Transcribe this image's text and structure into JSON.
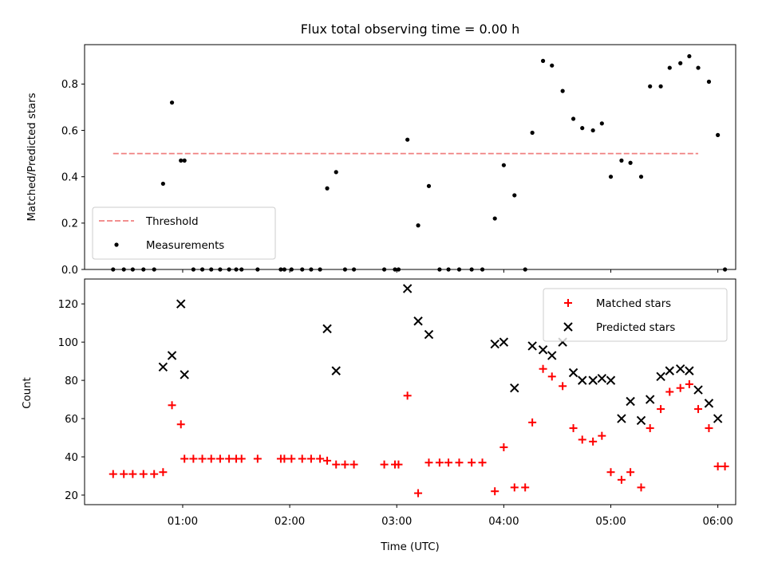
{
  "chart_data": [
    {
      "type": "scatter",
      "title": "Flux total observing time = 0.00 h",
      "xlabel": "",
      "ylabel": "Matched/Predicted stars",
      "xlim": [
        "00:05",
        "06:10"
      ],
      "ylim": [
        0,
        0.97
      ],
      "yticks": [
        0.0,
        0.2,
        0.4,
        0.6,
        0.8
      ],
      "yticklabels": [
        "0.0",
        "0.2",
        "0.4",
        "0.6",
        "0.8"
      ],
      "xticks": [
        "01:00",
        "02:00",
        "03:00",
        "04:00",
        "05:00",
        "06:00"
      ],
      "grid": false,
      "legend": {
        "placement": "lower-left",
        "entries": [
          "Threshold",
          "Measurements"
        ]
      },
      "series": [
        {
          "name": "Threshold",
          "kind": "dashed-line",
          "color": "#f08080",
          "x": [
            "00:21",
            "05:49"
          ],
          "y": [
            0.5,
            0.5
          ]
        },
        {
          "name": "Measurements",
          "kind": "points",
          "color": "#000000",
          "points": [
            [
              "00:21",
              0.0
            ],
            [
              "00:27",
              0.0
            ],
            [
              "00:32",
              0.0
            ],
            [
              "00:38",
              0.0
            ],
            [
              "00:44",
              0.0
            ],
            [
              "00:49",
              0.37
            ],
            [
              "00:54",
              0.72
            ],
            [
              "00:59",
              0.47
            ],
            [
              "01:01",
              0.47
            ],
            [
              "01:06",
              0.0
            ],
            [
              "01:11",
              0.0
            ],
            [
              "01:16",
              0.0
            ],
            [
              "01:21",
              0.0
            ],
            [
              "01:26",
              0.0
            ],
            [
              "01:30",
              0.0
            ],
            [
              "01:33",
              0.0
            ],
            [
              "01:42",
              0.0
            ],
            [
              "01:55",
              0.0
            ],
            [
              "01:57",
              0.0
            ],
            [
              "02:01",
              0.0
            ],
            [
              "02:07",
              0.0
            ],
            [
              "02:12",
              0.0
            ],
            [
              "02:17",
              0.0
            ],
            [
              "02:21",
              0.35
            ],
            [
              "02:26",
              0.42
            ],
            [
              "02:31",
              0.0
            ],
            [
              "02:36",
              0.0
            ],
            [
              "02:53",
              0.0
            ],
            [
              "02:59",
              0.0
            ],
            [
              "03:01",
              0.0
            ],
            [
              "03:06",
              0.56
            ],
            [
              "03:12",
              0.19
            ],
            [
              "03:18",
              0.36
            ],
            [
              "03:24",
              0.0
            ],
            [
              "03:29",
              0.0
            ],
            [
              "03:35",
              0.0
            ],
            [
              "03:42",
              0.0
            ],
            [
              "03:48",
              0.0
            ],
            [
              "03:55",
              0.22
            ],
            [
              "04:00",
              0.45
            ],
            [
              "04:06",
              0.32
            ],
            [
              "04:12",
              0.0
            ],
            [
              "04:16",
              0.59
            ],
            [
              "04:22",
              0.9
            ],
            [
              "04:27",
              0.88
            ],
            [
              "04:33",
              0.77
            ],
            [
              "04:39",
              0.65
            ],
            [
              "04:44",
              0.61
            ],
            [
              "04:50",
              0.6
            ],
            [
              "04:55",
              0.63
            ],
            [
              "05:00",
              0.4
            ],
            [
              "05:06",
              0.47
            ],
            [
              "05:11",
              0.46
            ],
            [
              "05:17",
              0.4
            ],
            [
              "05:22",
              0.79
            ],
            [
              "05:28",
              0.79
            ],
            [
              "05:33",
              0.87
            ],
            [
              "05:39",
              0.89
            ],
            [
              "05:44",
              0.92
            ],
            [
              "05:49",
              0.87
            ],
            [
              "05:55",
              0.81
            ],
            [
              "06:00",
              0.58
            ],
            [
              "06:04",
              0.0
            ]
          ]
        }
      ]
    },
    {
      "type": "scatter",
      "title": "",
      "xlabel": "Time (UTC)",
      "ylabel": "Count",
      "xlim": [
        "00:05",
        "06:10"
      ],
      "ylim": [
        15,
        133
      ],
      "yticks": [
        20,
        40,
        60,
        80,
        100,
        120
      ],
      "yticklabels": [
        "20",
        "40",
        "60",
        "80",
        "100",
        "120"
      ],
      "xticks": [
        "01:00",
        "02:00",
        "03:00",
        "04:00",
        "05:00",
        "06:00"
      ],
      "xticklabels": [
        "01:00",
        "02:00",
        "03:00",
        "04:00",
        "05:00",
        "06:00"
      ],
      "grid": false,
      "legend": {
        "placement": "upper-right",
        "entries": [
          "Matched stars",
          "Predicted stars"
        ]
      },
      "series": [
        {
          "name": "Matched stars",
          "marker": "plus",
          "color": "#ff0000",
          "points": [
            [
              "00:21",
              31
            ],
            [
              "00:27",
              31
            ],
            [
              "00:32",
              31
            ],
            [
              "00:38",
              31
            ],
            [
              "00:44",
              31
            ],
            [
              "00:49",
              32
            ],
            [
              "00:54",
              67
            ],
            [
              "00:59",
              57
            ],
            [
              "01:01",
              39
            ],
            [
              "01:06",
              39
            ],
            [
              "01:11",
              39
            ],
            [
              "01:16",
              39
            ],
            [
              "01:21",
              39
            ],
            [
              "01:26",
              39
            ],
            [
              "01:30",
              39
            ],
            [
              "01:33",
              39
            ],
            [
              "01:42",
              39
            ],
            [
              "01:55",
              39
            ],
            [
              "01:57",
              39
            ],
            [
              "02:01",
              39
            ],
            [
              "02:07",
              39
            ],
            [
              "02:12",
              39
            ],
            [
              "02:17",
              39
            ],
            [
              "02:21",
              38
            ],
            [
              "02:26",
              36
            ],
            [
              "02:31",
              36
            ],
            [
              "02:36",
              36
            ],
            [
              "02:53",
              36
            ],
            [
              "02:59",
              36
            ],
            [
              "03:01",
              36
            ],
            [
              "03:06",
              72
            ],
            [
              "03:12",
              21
            ],
            [
              "03:18",
              37
            ],
            [
              "03:24",
              37
            ],
            [
              "03:29",
              37
            ],
            [
              "03:35",
              37
            ],
            [
              "03:42",
              37
            ],
            [
              "03:48",
              37
            ],
            [
              "03:55",
              22
            ],
            [
              "04:00",
              45
            ],
            [
              "04:06",
              24
            ],
            [
              "04:12",
              24
            ],
            [
              "04:16",
              58
            ],
            [
              "04:22",
              86
            ],
            [
              "04:27",
              82
            ],
            [
              "04:33",
              77
            ],
            [
              "04:39",
              55
            ],
            [
              "04:44",
              49
            ],
            [
              "04:50",
              48
            ],
            [
              "04:55",
              51
            ],
            [
              "05:00",
              32
            ],
            [
              "05:06",
              28
            ],
            [
              "05:11",
              32
            ],
            [
              "05:17",
              24
            ],
            [
              "05:22",
              55
            ],
            [
              "05:28",
              65
            ],
            [
              "05:33",
              74
            ],
            [
              "05:39",
              76
            ],
            [
              "05:44",
              78
            ],
            [
              "05:49",
              65
            ],
            [
              "05:55",
              55
            ],
            [
              "06:00",
              35
            ],
            [
              "06:04",
              35
            ]
          ]
        },
        {
          "name": "Predicted stars",
          "marker": "x",
          "color": "#000000",
          "points": [
            [
              "00:49",
              87
            ],
            [
              "00:54",
              93
            ],
            [
              "00:59",
              120
            ],
            [
              "01:01",
              83
            ],
            [
              "02:21",
              107
            ],
            [
              "02:26",
              85
            ],
            [
              "03:06",
              128
            ],
            [
              "03:12",
              111
            ],
            [
              "03:18",
              104
            ],
            [
              "03:55",
              99
            ],
            [
              "04:00",
              100
            ],
            [
              "04:06",
              76
            ],
            [
              "04:16",
              98
            ],
            [
              "04:22",
              96
            ],
            [
              "04:27",
              93
            ],
            [
              "04:33",
              100
            ],
            [
              "04:39",
              84
            ],
            [
              "04:44",
              80
            ],
            [
              "04:50",
              80
            ],
            [
              "04:55",
              81
            ],
            [
              "05:00",
              80
            ],
            [
              "05:06",
              60
            ],
            [
              "05:11",
              69
            ],
            [
              "05:17",
              59
            ],
            [
              "05:22",
              70
            ],
            [
              "05:28",
              82
            ],
            [
              "05:33",
              85
            ],
            [
              "05:39",
              86
            ],
            [
              "05:44",
              85
            ],
            [
              "05:49",
              75
            ],
            [
              "05:55",
              68
            ],
            [
              "06:00",
              60
            ]
          ]
        }
      ]
    }
  ]
}
